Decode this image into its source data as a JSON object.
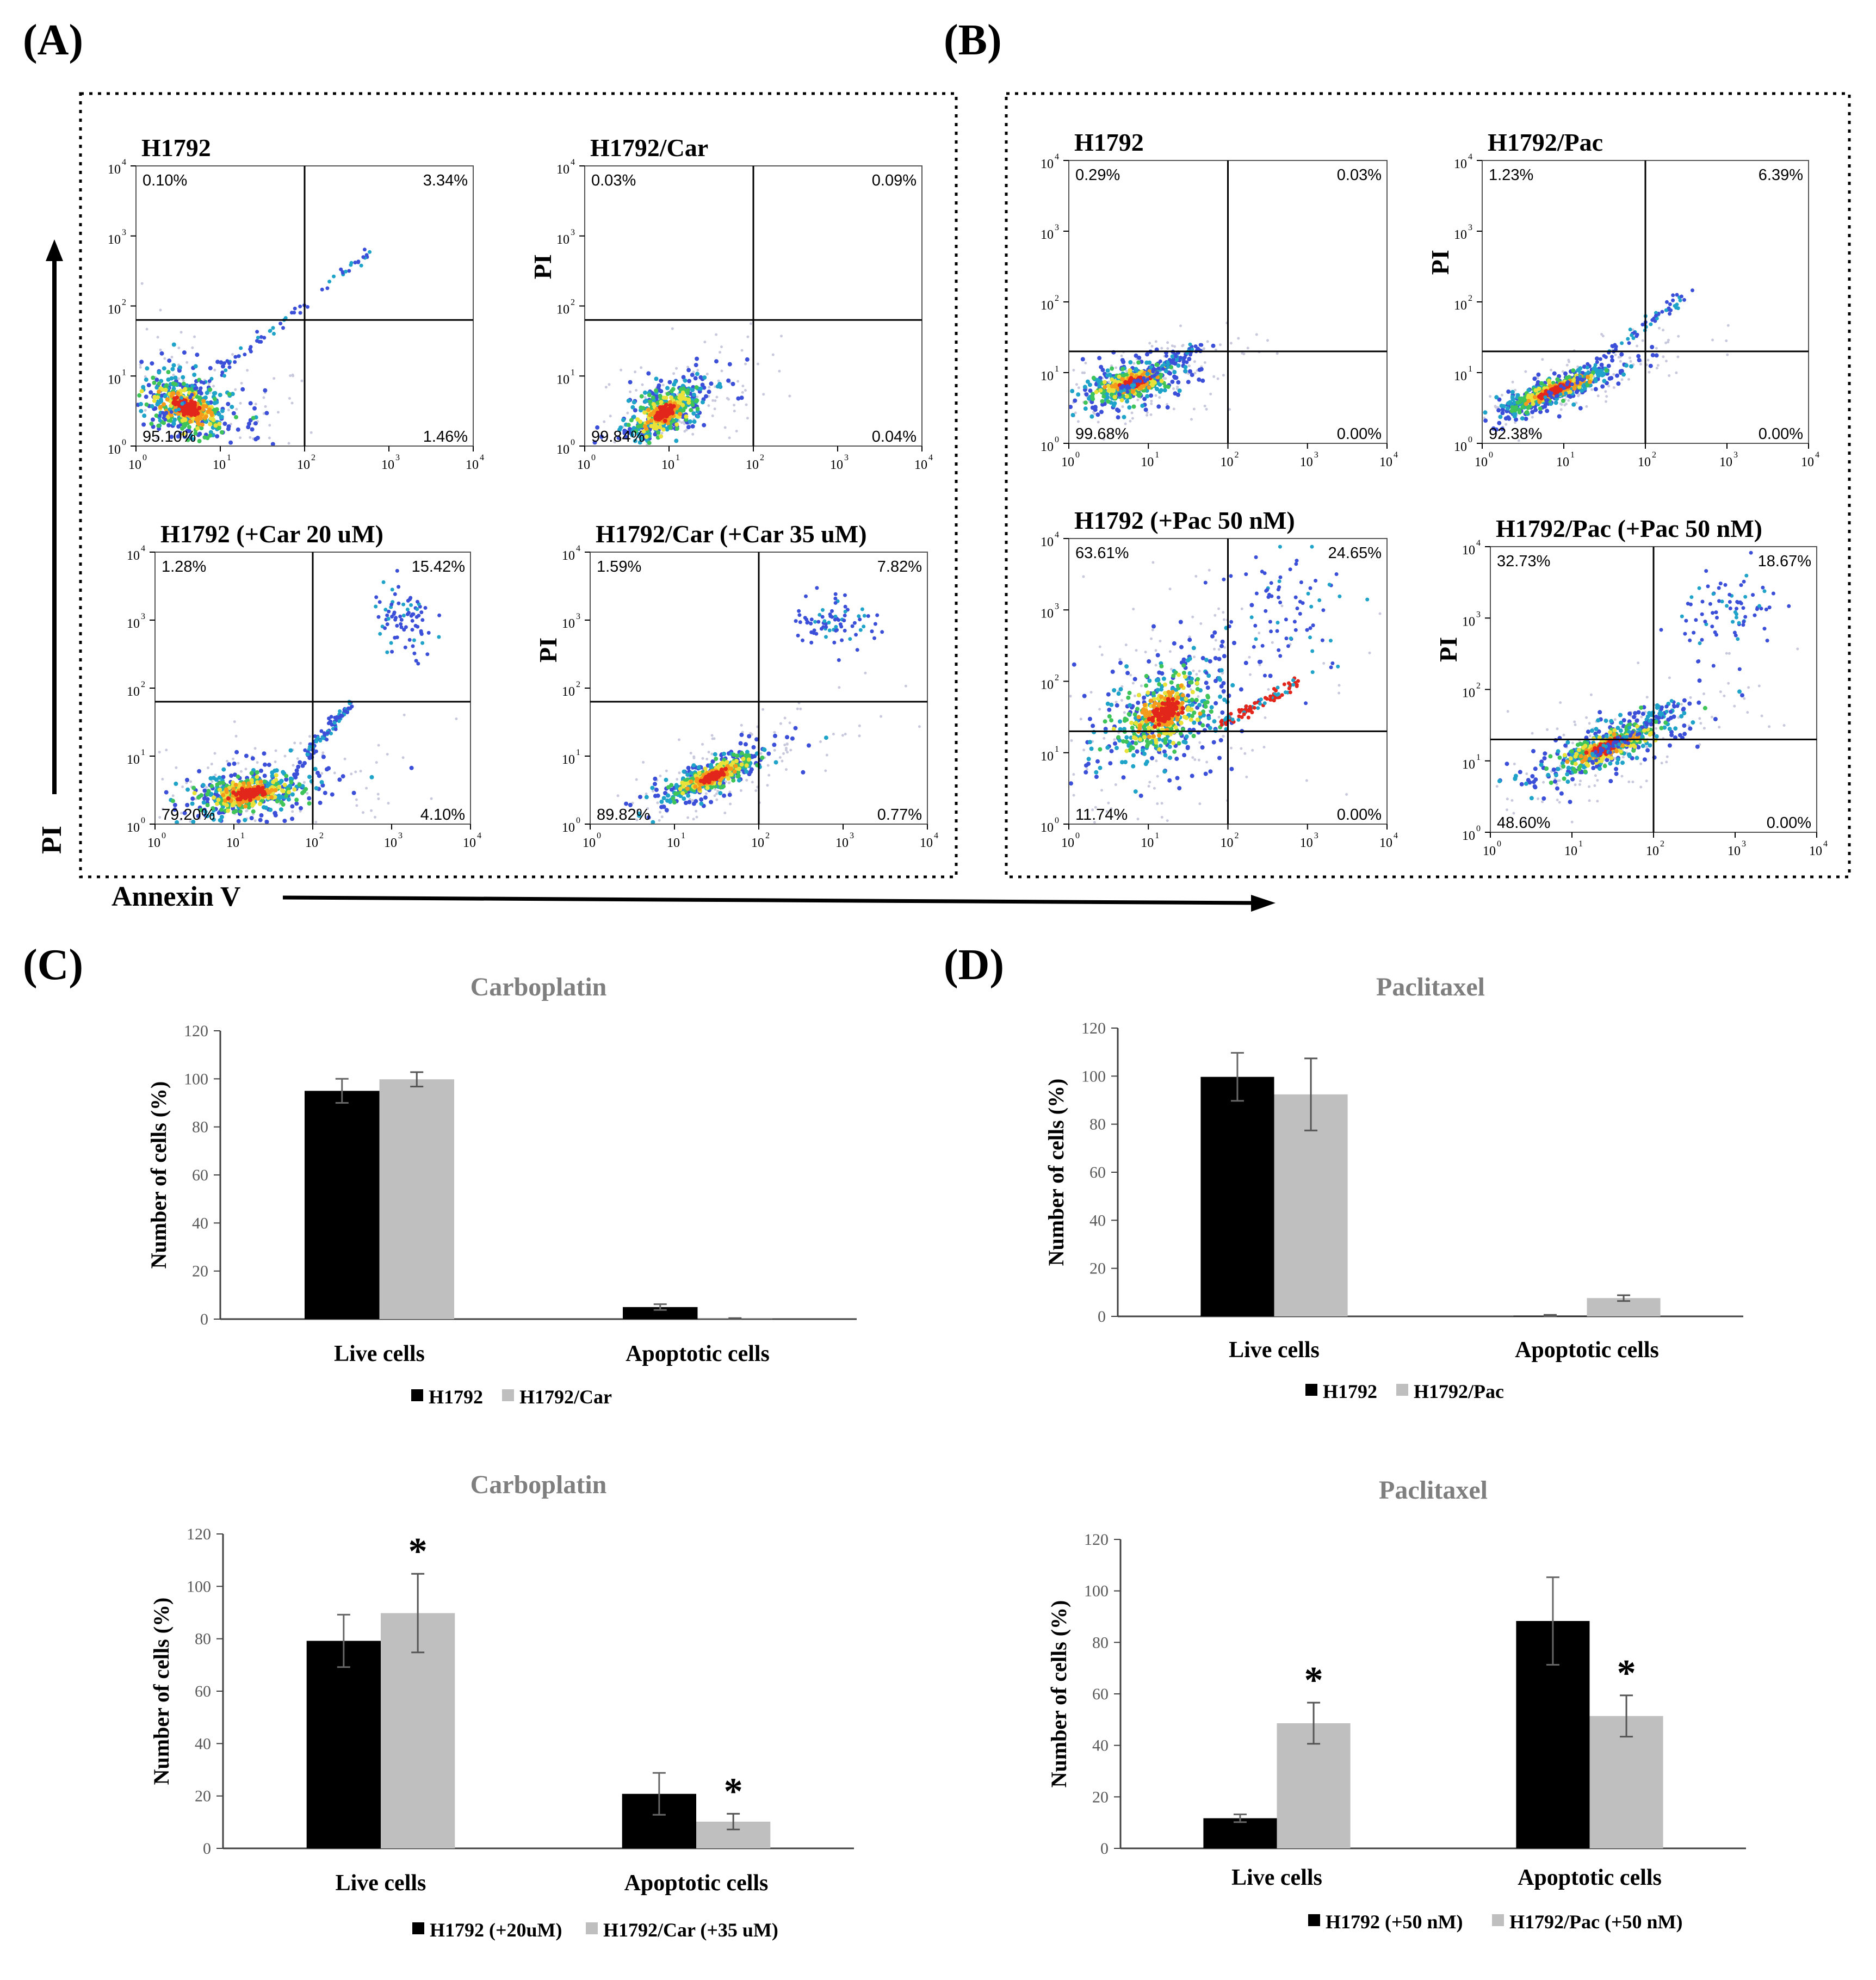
{
  "panel_labels": [
    "(A)",
    "(B)",
    "(C)",
    "(D)"
  ],
  "axis_labels": {
    "pi": "PI",
    "annexin": "Annexin V"
  },
  "flow_tick_base": "10",
  "chart_data": [
    {
      "type": "scatter",
      "panel": "A",
      "title": "H1792",
      "xscale": "log",
      "yscale": "log",
      "xlim": [
        1,
        10000
      ],
      "ylim": [
        1,
        10000
      ],
      "quadrants": {
        "ul": "0.10%",
        "ur": "3.34%",
        "ll": "95.10%",
        "lr": "1.46%"
      },
      "ylabel": ""
    },
    {
      "type": "scatter",
      "panel": "A",
      "title": "H1792/Car",
      "xscale": "log",
      "yscale": "log",
      "xlim": [
        1,
        10000
      ],
      "ylim": [
        1,
        10000
      ],
      "quadrants": {
        "ul": "0.03%",
        "ur": "0.09%",
        "ll": "99.84%",
        "lr": "0.04%"
      },
      "ylabel": "PI"
    },
    {
      "type": "scatter",
      "panel": "A",
      "title": "H1792 (+Car 20 uM)",
      "xscale": "log",
      "yscale": "log",
      "xlim": [
        1,
        10000
      ],
      "ylim": [
        1,
        10000
      ],
      "quadrants": {
        "ul": "1.28%",
        "ur": "15.42%",
        "ll": "79.20%",
        "lr": "4.10%"
      },
      "ylabel": ""
    },
    {
      "type": "scatter",
      "panel": "A",
      "title": "H1792/Car (+Car 35 uM)",
      "xscale": "log",
      "yscale": "log",
      "xlim": [
        1,
        10000
      ],
      "ylim": [
        1,
        10000
      ],
      "quadrants": {
        "ul": "1.59%",
        "ur": "7.82%",
        "ll": "89.82%",
        "lr": "0.77%"
      },
      "ylabel": "PI"
    },
    {
      "type": "scatter",
      "panel": "B",
      "title": "H1792",
      "xscale": "log",
      "yscale": "log",
      "xlim": [
        1,
        10000
      ],
      "ylim": [
        1,
        10000
      ],
      "quadrants": {
        "ul": "0.29%",
        "ur": "0.03%",
        "ll": "99.68%",
        "lr": "0.00%"
      },
      "ylabel": ""
    },
    {
      "type": "scatter",
      "panel": "B",
      "title": "H1792/Pac",
      "xscale": "log",
      "yscale": "log",
      "xlim": [
        1,
        10000
      ],
      "ylim": [
        1,
        10000
      ],
      "quadrants": {
        "ul": "1.23%",
        "ur": "6.39%",
        "ll": "92.38%",
        "lr": "0.00%"
      },
      "ylabel": "PI"
    },
    {
      "type": "scatter",
      "panel": "B",
      "title": "H1792 (+Pac 50 nM)",
      "xscale": "log",
      "yscale": "log",
      "xlim": [
        1,
        10000
      ],
      "ylim": [
        1,
        10000
      ],
      "quadrants": {
        "ul": "63.61%",
        "ur": "24.65%",
        "ll": "11.74%",
        "lr": "0.00%"
      },
      "ylabel": ""
    },
    {
      "type": "scatter",
      "panel": "B",
      "title": "H1792/Pac (+Pac 50 nM)",
      "xscale": "log",
      "yscale": "log",
      "xlim": [
        1,
        10000
      ],
      "ylim": [
        1,
        10000
      ],
      "quadrants": {
        "ul": "32.73%",
        "ur": "18.67%",
        "ll": "48.60%",
        "lr": "0.00%"
      },
      "ylabel": "PI"
    },
    {
      "type": "bar",
      "panel": "C",
      "title": "Carboplatin",
      "ylabel": "Number of cells (%)",
      "ylim": [
        0,
        120
      ],
      "yticks": [
        0,
        20,
        40,
        60,
        80,
        100,
        120
      ],
      "categories": [
        "Live cells",
        "Apoptotic cells"
      ],
      "series": [
        {
          "name": "H1792",
          "color": "#000000",
          "values": [
            95,
            5
          ],
          "err": [
            5,
            1.2
          ]
        },
        {
          "name": "H1792/Car",
          "color": "#bfbfbf",
          "values": [
            99.8,
            0.1
          ],
          "err": [
            3,
            0.3
          ]
        }
      ],
      "stars": []
    },
    {
      "type": "bar",
      "panel": "D",
      "title": "Paclitaxel",
      "ylabel": "Number of cells (%)",
      "ylim": [
        0,
        120
      ],
      "yticks": [
        0,
        20,
        40,
        60,
        80,
        100,
        120
      ],
      "categories": [
        "Live cells",
        "Apoptotic cells"
      ],
      "series": [
        {
          "name": "H1792",
          "color": "#000000",
          "values": [
            99.7,
            0.3
          ],
          "err": [
            10,
            0.3
          ]
        },
        {
          "name": "H1792/Pac",
          "color": "#bfbfbf",
          "values": [
            92.4,
            7.6
          ],
          "err": [
            15,
            1.2
          ]
        }
      ],
      "stars": []
    },
    {
      "type": "bar",
      "panel": "C",
      "title": "Carboplatin",
      "ylabel": "Number of cells (%)",
      "ylim": [
        0,
        120
      ],
      "yticks": [
        0,
        20,
        40,
        60,
        80,
        100,
        120
      ],
      "categories": [
        "Live cells",
        "Apoptotic cells"
      ],
      "series": [
        {
          "name": "H1792 (+20uM)",
          "color": "#000000",
          "values": [
            79.2,
            20.8
          ],
          "err": [
            10,
            8
          ]
        },
        {
          "name": "H1792/Car (+35 uM)",
          "color": "#bfbfbf",
          "values": [
            89.8,
            10.2
          ],
          "err": [
            15,
            3
          ]
        }
      ],
      "stars": [
        {
          "series": 1,
          "category": 0,
          "label": "*"
        },
        {
          "series": 1,
          "category": 1,
          "label": "*"
        }
      ]
    },
    {
      "type": "bar",
      "panel": "D",
      "title": "Paclitaxel",
      "ylabel": "Number of cells (%)",
      "ylim": [
        0,
        120
      ],
      "yticks": [
        0,
        20,
        40,
        60,
        80,
        100,
        120
      ],
      "categories": [
        "Live cells",
        "Apoptotic cells"
      ],
      "series": [
        {
          "name": "H1792 (+50 nM)",
          "color": "#000000",
          "values": [
            11.7,
            88.3
          ],
          "err": [
            1.5,
            17
          ]
        },
        {
          "name": "H1792/Pac (+50 nM)",
          "color": "#bfbfbf",
          "values": [
            48.6,
            51.4
          ],
          "err": [
            8,
            8
          ]
        }
      ],
      "stars": [
        {
          "series": 1,
          "category": 0,
          "label": "*"
        },
        {
          "series": 1,
          "category": 1,
          "label": "*"
        }
      ]
    }
  ]
}
